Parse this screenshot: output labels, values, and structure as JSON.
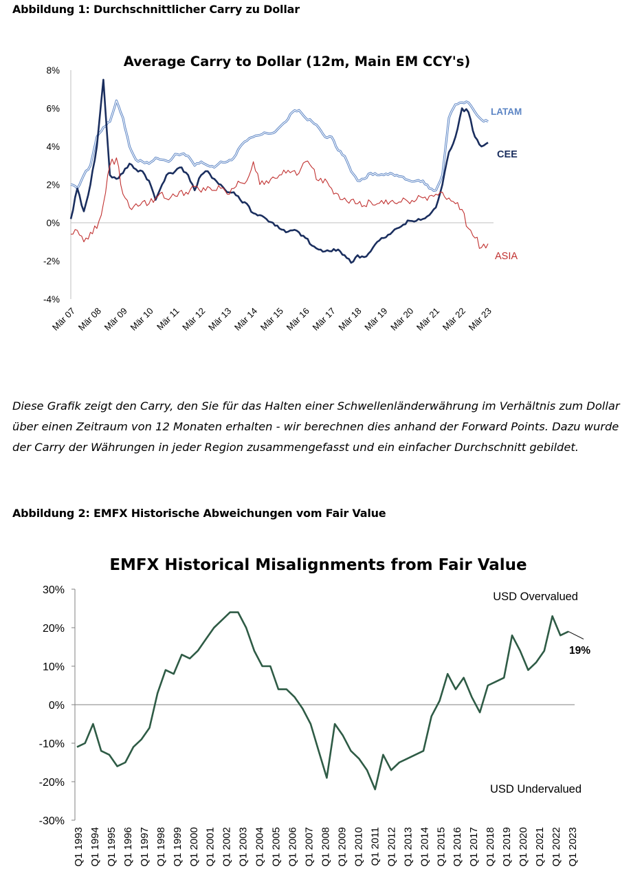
{
  "figure1": {
    "heading": "Abbildung 1: Durchschnittlicher Carry zu Dollar",
    "chart_data": {
      "type": "line",
      "title": "Average Carry to Dollar (12m, Main EM CCY's)",
      "ylim": [
        -4,
        8
      ],
      "y_ticks": [
        "8%",
        "6%",
        "4%",
        "2%",
        "0%",
        "-2%",
        "-4%"
      ],
      "y_tick_values": [
        8,
        6,
        4,
        2,
        0,
        -2,
        -4
      ],
      "x_ticks": [
        "Mär 07",
        "Mär 08",
        "Mär 09",
        "Mär 10",
        "Mär 11",
        "Mär 12",
        "Mär 13",
        "Mär 14",
        "Mär 15",
        "Mär 16",
        "Mär 17",
        "Mär 18",
        "Mär 19",
        "Mär 20",
        "Mär 21",
        "Mär 22",
        "Mär 23"
      ],
      "grid": false,
      "legend": "inline labels at line ends",
      "series": [
        {
          "name": "LATAM",
          "color": "#5b84c4",
          "x": [
            "Mär 07",
            "Jun 07",
            "Sep 07",
            "Dez 07",
            "Mär 08",
            "Jun 08",
            "Sep 08",
            "Dez 08",
            "Mär 09",
            "Jun 09",
            "Sep 09",
            "Dez 09",
            "Mär 10",
            "Jun 10",
            "Sep 10",
            "Dez 10",
            "Mär 11",
            "Jun 11",
            "Sep 11",
            "Dez 11",
            "Mär 12",
            "Jun 12",
            "Sep 12",
            "Dez 12",
            "Mär 13",
            "Jun 13",
            "Sep 13",
            "Dez 13",
            "Mär 14",
            "Jun 14",
            "Sep 14",
            "Dez 14",
            "Mär 15",
            "Jun 15",
            "Sep 15",
            "Dez 15",
            "Mär 16",
            "Jun 16",
            "Sep 16",
            "Dez 16",
            "Mär 17",
            "Jun 17",
            "Sep 17",
            "Dez 17",
            "Mär 18",
            "Jun 18",
            "Sep 18",
            "Dez 18",
            "Mär 19",
            "Jun 19",
            "Sep 19",
            "Dez 19",
            "Mär 20",
            "Jun 20",
            "Sep 20",
            "Dez 20",
            "Mär 21",
            "Jun 21",
            "Sep 21",
            "Dez 21",
            "Mär 22",
            "Jun 22",
            "Sep 22",
            "Dez 22",
            "Mär 23"
          ],
          "values": [
            2.0,
            1.8,
            2.5,
            3.0,
            4.5,
            5.0,
            5.3,
            6.4,
            5.5,
            4.0,
            3.3,
            3.2,
            3.1,
            3.4,
            3.3,
            3.2,
            3.6,
            3.6,
            3.5,
            3.0,
            3.2,
            3.0,
            2.9,
            3.2,
            3.2,
            3.4,
            4.0,
            4.3,
            4.5,
            4.6,
            4.7,
            4.7,
            5.0,
            5.3,
            5.8,
            5.9,
            5.5,
            5.3,
            5.0,
            4.5,
            4.5,
            3.8,
            3.5,
            2.7,
            2.2,
            2.3,
            2.6,
            2.5,
            2.5,
            2.6,
            2.5,
            2.4,
            2.2,
            2.2,
            2.2,
            1.8,
            1.7,
            2.5,
            5.5,
            6.2,
            6.3,
            6.3,
            5.8,
            5.4,
            5.3
          ]
        },
        {
          "name": "CEE",
          "color": "#1a2e5e",
          "x": [
            "Mär 07",
            "Jun 07",
            "Sep 07",
            "Dez 07",
            "Mär 08",
            "Jun 08",
            "Sep 08",
            "Dez 08",
            "Mär 09",
            "Jun 09",
            "Sep 09",
            "Dez 09",
            "Mär 10",
            "Jun 10",
            "Sep 10",
            "Dez 10",
            "Mär 11",
            "Jun 11",
            "Sep 11",
            "Dez 11",
            "Mär 12",
            "Jun 12",
            "Sep 12",
            "Dez 12",
            "Mär 13",
            "Jun 13",
            "Sep 13",
            "Dez 13",
            "Mär 14",
            "Jun 14",
            "Sep 14",
            "Dez 14",
            "Mär 15",
            "Jun 15",
            "Sep 15",
            "Dez 15",
            "Mär 16",
            "Jun 16",
            "Sep 16",
            "Dez 16",
            "Mär 17",
            "Jun 17",
            "Sep 17",
            "Dez 17",
            "Mär 18",
            "Jun 18",
            "Sep 18",
            "Dez 18",
            "Mär 19",
            "Jun 19",
            "Sep 19",
            "Dez 19",
            "Mär 20",
            "Jun 20",
            "Sep 20",
            "Dez 20",
            "Mär 21",
            "Jun 21",
            "Sep 21",
            "Dez 21",
            "Mär 22",
            "Jun 22",
            "Sep 22",
            "Dez 22",
            "Mär 23"
          ],
          "values": [
            0.2,
            1.8,
            0.6,
            2.0,
            4.0,
            7.5,
            2.5,
            2.3,
            2.6,
            3.1,
            2.8,
            2.7,
            2.2,
            1.2,
            2.0,
            2.6,
            2.7,
            2.9,
            2.5,
            1.7,
            2.5,
            2.7,
            2.3,
            2.0,
            1.6,
            1.6,
            1.2,
            1.0,
            0.5,
            0.4,
            0.2,
            0.0,
            -0.3,
            -0.5,
            -0.4,
            -0.5,
            -0.8,
            -1.2,
            -1.4,
            -1.5,
            -1.5,
            -1.4,
            -1.7,
            -2.1,
            -1.7,
            -1.8,
            -1.5,
            -1.0,
            -0.8,
            -0.6,
            -0.3,
            -0.1,
            0.1,
            0.1,
            0.2,
            0.4,
            0.8,
            2.0,
            3.7,
            4.5,
            6.0,
            5.8,
            4.5,
            4.0,
            4.2
          ]
        },
        {
          "name": "ASIA",
          "color": "#c0302f",
          "x": [
            "Mär 07",
            "Jun 07",
            "Sep 07",
            "Dez 07",
            "Mär 08",
            "Jun 08",
            "Sep 08",
            "Dez 08",
            "Mär 09",
            "Jun 09",
            "Sep 09",
            "Dez 09",
            "Mär 10",
            "Jun 10",
            "Sep 10",
            "Dez 10",
            "Mär 11",
            "Jun 11",
            "Sep 11",
            "Dez 11",
            "Mär 12",
            "Jun 12",
            "Sep 12",
            "Dez 12",
            "Mär 13",
            "Jun 13",
            "Sep 13",
            "Dez 13",
            "Mär 14",
            "Jun 14",
            "Sep 14",
            "Dez 14",
            "Mär 15",
            "Jun 15",
            "Sep 15",
            "Dez 15",
            "Mär 16",
            "Jun 16",
            "Sep 16",
            "Dez 16",
            "Mär 17",
            "Jun 17",
            "Sep 17",
            "Dez 17",
            "Mär 18",
            "Jun 18",
            "Sep 18",
            "Dez 18",
            "Mär 19",
            "Jun 19",
            "Sep 19",
            "Dez 19",
            "Mär 20",
            "Jun 20",
            "Sep 20",
            "Dez 20",
            "Mär 21",
            "Jun 21",
            "Sep 21",
            "Dez 21",
            "Mär 22",
            "Jun 22",
            "Sep 22",
            "Dez 22",
            "Mär 23"
          ],
          "values": [
            -0.6,
            -0.4,
            -1.0,
            -0.5,
            -0.3,
            1.0,
            3.0,
            3.4,
            1.5,
            0.8,
            1.0,
            1.1,
            1.0,
            1.3,
            1.6,
            1.2,
            1.4,
            1.7,
            1.5,
            1.9,
            1.6,
            1.9,
            1.7,
            1.8,
            1.5,
            1.8,
            2.1,
            2.2,
            3.2,
            2.0,
            2.2,
            2.4,
            2.5,
            2.6,
            2.7,
            2.6,
            3.2,
            2.9,
            2.2,
            2.3,
            1.8,
            1.5,
            1.3,
            1.2,
            1.0,
            0.9,
            1.1,
            1.0,
            1.0,
            1.1,
            1.0,
            1.3,
            1.0,
            1.2,
            1.3,
            1.4,
            1.5,
            1.6,
            1.3,
            1.0,
            0.7,
            -0.3,
            -0.8,
            -1.3,
            -1.1
          ]
        }
      ]
    }
  },
  "caption": "Diese Grafik zeigt den Carry, den Sie für das Halten einer Schwellenländerwährung im Verhältnis zum Dollar über einen Zeitraum von 12 Monaten erhalten - wir berechnen dies anhand der Forward Points. Dazu wurde der Carry der Währungen in jeder Region zusammengefasst und ein einfacher Durchschnitt gebildet.",
  "figure2": {
    "heading": "Abbildung 2: EMFX Historische Abweichungen vom Fair Value",
    "chart_data": {
      "type": "line",
      "title": "EMFX Historical Misalignments from Fair Value",
      "ylim": [
        -30,
        30
      ],
      "y_ticks": [
        "30%",
        "20%",
        "10%",
        "0%",
        "-10%",
        "-20%",
        "-30%"
      ],
      "y_tick_values": [
        30,
        20,
        10,
        0,
        -10,
        -20,
        -30
      ],
      "x_ticks": [
        "Q1 1993",
        "Q1 1994",
        "Q1 1995",
        "Q1 1996",
        "Q1 1997",
        "Q1 1998",
        "Q1 1999",
        "Q1 2000",
        "Q1 2001",
        "Q1 2002",
        "Q1 2003",
        "Q1 2004",
        "Q1 2005",
        "Q1 2006",
        "Q1 2007",
        "Q1 2008",
        "Q1 2009",
        "Q1 2010",
        "Q1 2011",
        "Q1 2012",
        "Q1 2013",
        "Q1 2014",
        "Q1 2015",
        "Q1 2016",
        "Q1 2017",
        "Q1 2018",
        "Q1 2019",
        "Q1 2020",
        "Q1 2021",
        "Q1 2022",
        "Q1 2023"
      ],
      "grid": false,
      "annotations": [
        "USD Overvalued",
        "USD Undervalued",
        "19%"
      ],
      "series": [
        {
          "color": "#2e5b45",
          "x": [
            "Q1 1993",
            "Q3 1993",
            "Q1 1994",
            "Q3 1994",
            "Q1 1995",
            "Q3 1995",
            "Q1 1996",
            "Q3 1996",
            "Q1 1997",
            "Q3 1997",
            "Q1 1998",
            "Q3 1998",
            "Q1 1999",
            "Q3 1999",
            "Q1 2000",
            "Q3 2000",
            "Q1 2001",
            "Q3 2001",
            "Q1 2002",
            "Q3 2002",
            "Q1 2003",
            "Q3 2003",
            "Q1 2004",
            "Q3 2004",
            "Q1 2005",
            "Q3 2005",
            "Q1 2006",
            "Q3 2006",
            "Q1 2007",
            "Q3 2007",
            "Q1 2008",
            "Q3 2008",
            "Q1 2009",
            "Q3 2009",
            "Q1 2010",
            "Q3 2010",
            "Q1 2011",
            "Q3 2011",
            "Q1 2012",
            "Q3 2012",
            "Q1 2013",
            "Q3 2013",
            "Q1 2014",
            "Q3 2014",
            "Q1 2015",
            "Q3 2015",
            "Q1 2016",
            "Q3 2016",
            "Q1 2017",
            "Q3 2017",
            "Q1 2018",
            "Q3 2018",
            "Q1 2019",
            "Q3 2019",
            "Q1 2020",
            "Q3 2020",
            "Q1 2021",
            "Q3 2021",
            "Q1 2022",
            "Q3 2022",
            "Q1 2023",
            "Q3 2023"
          ],
          "values": [
            -11,
            -10,
            -5,
            -12,
            -13,
            -16,
            -15,
            -11,
            -9,
            -6,
            3,
            9,
            8,
            13,
            12,
            14,
            17,
            20,
            22,
            24,
            24,
            20,
            14,
            10,
            10,
            4,
            4,
            2,
            -1,
            -5,
            -12,
            -19,
            -5,
            -8,
            -12,
            -14,
            -17,
            -22,
            -13,
            -17,
            -15,
            -14,
            -13,
            -12,
            -3,
            1,
            8,
            4,
            7,
            2,
            -2,
            5,
            6,
            7,
            18,
            14,
            9,
            11,
            14,
            23,
            18,
            19
          ]
        }
      ]
    }
  }
}
